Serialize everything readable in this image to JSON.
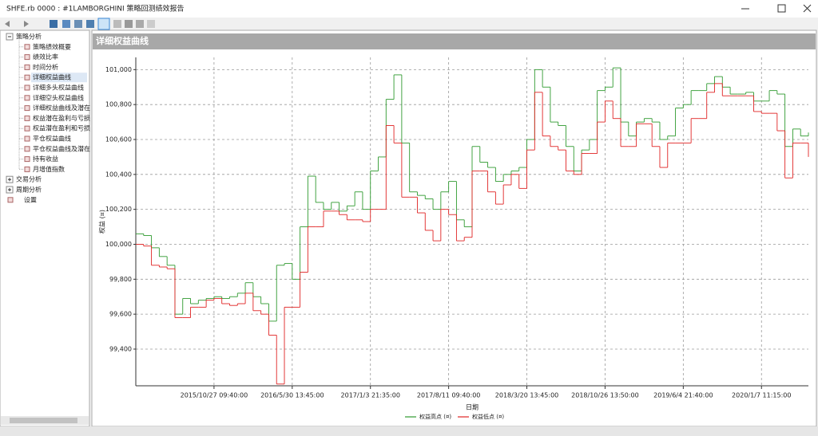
{
  "window": {
    "title": "SHFE.rb 0000 : #1LAMBORGHINI 策略回测绩效报告"
  },
  "tree": [
    {
      "label": "策略分析",
      "children": [
        "策略绩效概要",
        "绩效比率",
        "时间分析",
        "详细权益曲线",
        "详细多头权益曲线",
        "详细空头权益曲线",
        "详细权益曲线及潜在",
        "权益潜在盈利与亏损",
        "权益潜在盈利和亏损",
        "平仓权益曲线",
        "平仓权益曲线及潜在",
        "持有收益",
        "月增值指数"
      ]
    },
    {
      "label": "交易分析"
    },
    {
      "label": "周期分析"
    },
    {
      "label": "设置"
    }
  ],
  "selected": "详细权益曲线",
  "panel_title": "详细权益曲线",
  "chart_data": {
    "type": "step",
    "xlabel": "日期",
    "ylabel": "权益 (¤)",
    "categories": [
      null,
      null,
      null,
      null,
      null,
      null,
      null,
      null,
      null,
      null,
      "2015/10/27 09:40:00",
      null,
      null,
      null,
      null,
      null,
      null,
      null,
      null,
      null,
      "2016/5/30 13:45:00",
      null,
      null,
      null,
      null,
      null,
      null,
      null,
      null,
      null,
      "2017/1/3 21:35:00",
      null,
      null,
      null,
      null,
      null,
      null,
      null,
      null,
      null,
      "2017/8/11 09:40:00",
      null,
      null,
      null,
      null,
      null,
      null,
      null,
      null,
      null,
      "2018/3/20 13:45:00",
      null,
      null,
      null,
      null,
      null,
      null,
      null,
      null,
      null,
      "2018/10/26 13:50:00",
      null,
      null,
      null,
      null,
      null,
      null,
      null,
      null,
      null,
      "2019/6/4 21:40:00",
      null,
      null,
      null,
      null,
      null,
      null,
      null,
      null,
      null,
      "2020/1/7 11:15:00",
      null,
      null,
      null,
      null,
      null,
      null
    ],
    "series": [
      {
        "name": "权益高点 (¤)",
        "color": "#2f9a2f",
        "values": [
          100060,
          100050,
          99980,
          99930,
          99880,
          99600,
          99690,
          99660,
          99680,
          99690,
          99700,
          99690,
          99700,
          99720,
          99780,
          99700,
          99660,
          99560,
          99880,
          99890,
          99800,
          100100,
          100390,
          100240,
          100200,
          100240,
          100190,
          100220,
          100300,
          100200,
          100420,
          100500,
          100830,
          100970,
          100580,
          100300,
          100280,
          100260,
          100200,
          100300,
          100360,
          100140,
          100100,
          100560,
          100470,
          100440,
          100360,
          100400,
          100420,
          100440,
          100600,
          101000,
          100900,
          100700,
          100680,
          100560,
          100420,
          100540,
          100600,
          100880,
          100900,
          101010,
          100700,
          100620,
          100700,
          100720,
          100700,
          100600,
          100620,
          100780,
          100800,
          100880,
          100880,
          100920,
          100960,
          100900,
          100860,
          100860,
          100870,
          100820,
          100820,
          100880,
          100860,
          100560,
          100660,
          100620,
          100640
        ]
      },
      {
        "name": "权益低点 (¤)",
        "color": "#e02424",
        "values": [
          100000,
          99990,
          99880,
          99870,
          99860,
          99580,
          99580,
          99640,
          99640,
          99680,
          99690,
          99660,
          99650,
          99660,
          99720,
          99620,
          99600,
          99480,
          99200,
          99640,
          99640,
          99840,
          100100,
          100100,
          100190,
          100190,
          100170,
          100140,
          100140,
          100130,
          100200,
          100200,
          100680,
          100580,
          100270,
          100270,
          100180,
          100080,
          100020,
          100200,
          100170,
          100020,
          100040,
          100420,
          100420,
          100300,
          100230,
          100340,
          100400,
          100320,
          100540,
          100870,
          100620,
          100560,
          100540,
          100420,
          100400,
          100520,
          100520,
          100700,
          100820,
          100720,
          100560,
          100560,
          100690,
          100690,
          100560,
          100440,
          100580,
          100580,
          100580,
          100720,
          100720,
          100870,
          100920,
          100850,
          100850,
          100850,
          100850,
          100760,
          100750,
          100750,
          100650,
          100380,
          100580,
          100580,
          100500
        ]
      }
    ],
    "ylim": [
      99190,
      101070
    ],
    "yticks": [
      {
        "value": 99400,
        "label": "99,400"
      },
      {
        "value": 99600,
        "label": "99,600"
      },
      {
        "value": 99800,
        "label": "99,800"
      },
      {
        "value": 100000,
        "label": "100,000"
      },
      {
        "value": 100200,
        "label": "100,200"
      },
      {
        "value": 100400,
        "label": "100,400"
      },
      {
        "value": 100600,
        "label": "100,600"
      },
      {
        "value": 100800,
        "label": "100,800"
      },
      {
        "value": 101000,
        "label": "101,000"
      }
    ],
    "grid": true
  }
}
